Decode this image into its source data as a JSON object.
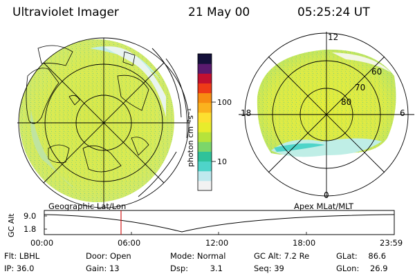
{
  "header": {
    "instrument": "Ultraviolet Imager",
    "date": "21 May 00",
    "time": "05:25:24 UT"
  },
  "colorbar": {
    "unit_label": "photon cm⁻²s⁻¹",
    "ticks": [
      "100",
      "10"
    ],
    "colors": [
      "#f2f2f2",
      "#bfe9ee",
      "#4fd4c9",
      "#2fc29a",
      "#7cd66a",
      "#b6e33b",
      "#e8ec2c",
      "#fde030",
      "#fbb21e",
      "#f78c12",
      "#ee3b18",
      "#c21030",
      "#5a1a6e",
      "#14103a"
    ]
  },
  "left_map": {
    "label": "Geographic Lat/Lon",
    "accent": "#d7e85a"
  },
  "right_map": {
    "label": "Apex MLat/MLT",
    "mlt_labels": {
      "top": "12",
      "left": "18",
      "right": "6",
      "bottom": "0"
    },
    "lat_labels": [
      "60",
      "70",
      "80"
    ]
  },
  "timeline": {
    "axis_label": "GC Alt",
    "y_ticks": [
      "9.0",
      "1.8"
    ],
    "x_ticks": [
      "00:00",
      "06:00",
      "12:00",
      "18:00",
      "23:59"
    ],
    "marker_color": "#d11a1a"
  },
  "status": {
    "filter_label": "Flt:",
    "filter_value": "LBHL",
    "ip_label": "IP:",
    "ip_value": "36.0",
    "door_label": "Door:",
    "door_value": "Open",
    "gain_label": "Gain:",
    "gain_value": "13",
    "mode_label": "Mode:",
    "mode_value": "Normal",
    "dsp_label": "Dsp:",
    "dsp_value": "3.1",
    "gcalt_label": "GC Alt:",
    "gcalt_value": "7.2 Re",
    "seq_label": "Seq:",
    "seq_value": "39",
    "glat_label": "GLat:",
    "glat_value": "86.6",
    "glon_label": "GLon:",
    "glon_value": "26.9"
  }
}
